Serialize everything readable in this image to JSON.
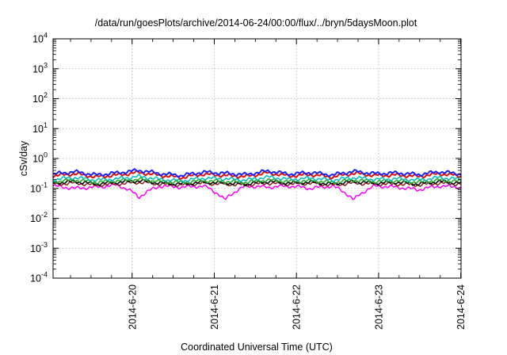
{
  "chart_data": {
    "type": "line",
    "title": "/data/run/goesPlots/archive/2014-06-24/00:00/flux/../bryn/5daysMoon.plot",
    "xlabel": "Coordinated Universal Time (UTC)",
    "ylabel": "cSv/day",
    "yscale": "log",
    "ylim": [
      0.0001,
      10000
    ],
    "xlim": [
      "2014-06-19 00:55",
      "2014-06-24 00:05"
    ],
    "grid": true,
    "x_ticks": [
      "2014-6-20",
      "2014-6-21",
      "2014-6-22",
      "2014-6-23",
      "2014-6-24"
    ],
    "y_ticks": [
      {
        "base": "10",
        "exp": "-4"
      },
      {
        "base": "10",
        "exp": "-3"
      },
      {
        "base": "10",
        "exp": "-2"
      },
      {
        "base": "10",
        "exp": "-1"
      },
      {
        "base": "10",
        "exp": "0"
      },
      {
        "base": "10",
        "exp": "1"
      },
      {
        "base": "10",
        "exp": "2"
      },
      {
        "base": "10",
        "exp": "3"
      },
      {
        "base": "10",
        "exp": "4"
      }
    ],
    "series": [
      {
        "color": "#2222ee",
        "level": 0.3,
        "values": [
          0.3,
          0.36,
          0.28,
          0.33,
          0.4,
          0.31,
          0.27,
          0.35,
          0.32,
          0.29,
          0.38,
          0.3,
          0.34,
          0.28,
          0.37,
          0.31,
          0.33,
          0.29,
          0.36,
          0.3
        ]
      },
      {
        "color": "#dd1111",
        "level": 0.26,
        "values": [
          0.26,
          0.31,
          0.24,
          0.28,
          0.34,
          0.27,
          0.23,
          0.3,
          0.27,
          0.25,
          0.33,
          0.26,
          0.29,
          0.24,
          0.32,
          0.27,
          0.28,
          0.25,
          0.31,
          0.26
        ]
      },
      {
        "color": "#00bbbb",
        "level": 0.2,
        "values": [
          0.2,
          0.23,
          0.19,
          0.21,
          0.25,
          0.2,
          0.18,
          0.22,
          0.21,
          0.19,
          0.24,
          0.2,
          0.22,
          0.19,
          0.23,
          0.2,
          0.21,
          0.19,
          0.23,
          0.2
        ]
      },
      {
        "color": "#22aa22",
        "level": 0.17,
        "values": [
          0.17,
          0.19,
          0.16,
          0.18,
          0.2,
          0.17,
          0.16,
          0.18,
          0.17,
          0.16,
          0.19,
          0.17,
          0.18,
          0.16,
          0.19,
          0.17,
          0.18,
          0.16,
          0.19,
          0.17
        ]
      },
      {
        "color": "#000000",
        "level": 0.15,
        "values": [
          0.15,
          0.17,
          0.14,
          0.16,
          0.18,
          0.15,
          0.14,
          0.16,
          0.15,
          0.14,
          0.17,
          0.15,
          0.16,
          0.14,
          0.17,
          0.15,
          0.16,
          0.14,
          0.17,
          0.15
        ]
      },
      {
        "color": "#882222",
        "level": 0.14,
        "values": [
          0.14,
          0.15,
          0.13,
          0.14,
          0.16,
          0.14,
          0.13,
          0.15,
          0.14,
          0.13,
          0.15,
          0.14,
          0.15,
          0.13,
          0.15,
          0.14,
          0.14,
          0.13,
          0.15,
          0.14
        ]
      },
      {
        "color": "#ff00ff",
        "level": 0.12,
        "values": [
          0.12,
          0.1,
          0.11,
          0.13,
          0.05,
          0.12,
          0.11,
          0.12,
          0.04,
          0.12,
          0.11,
          0.12,
          0.1,
          0.12,
          0.04,
          0.12,
          0.11,
          0.09,
          0.12,
          0.11
        ]
      }
    ]
  }
}
